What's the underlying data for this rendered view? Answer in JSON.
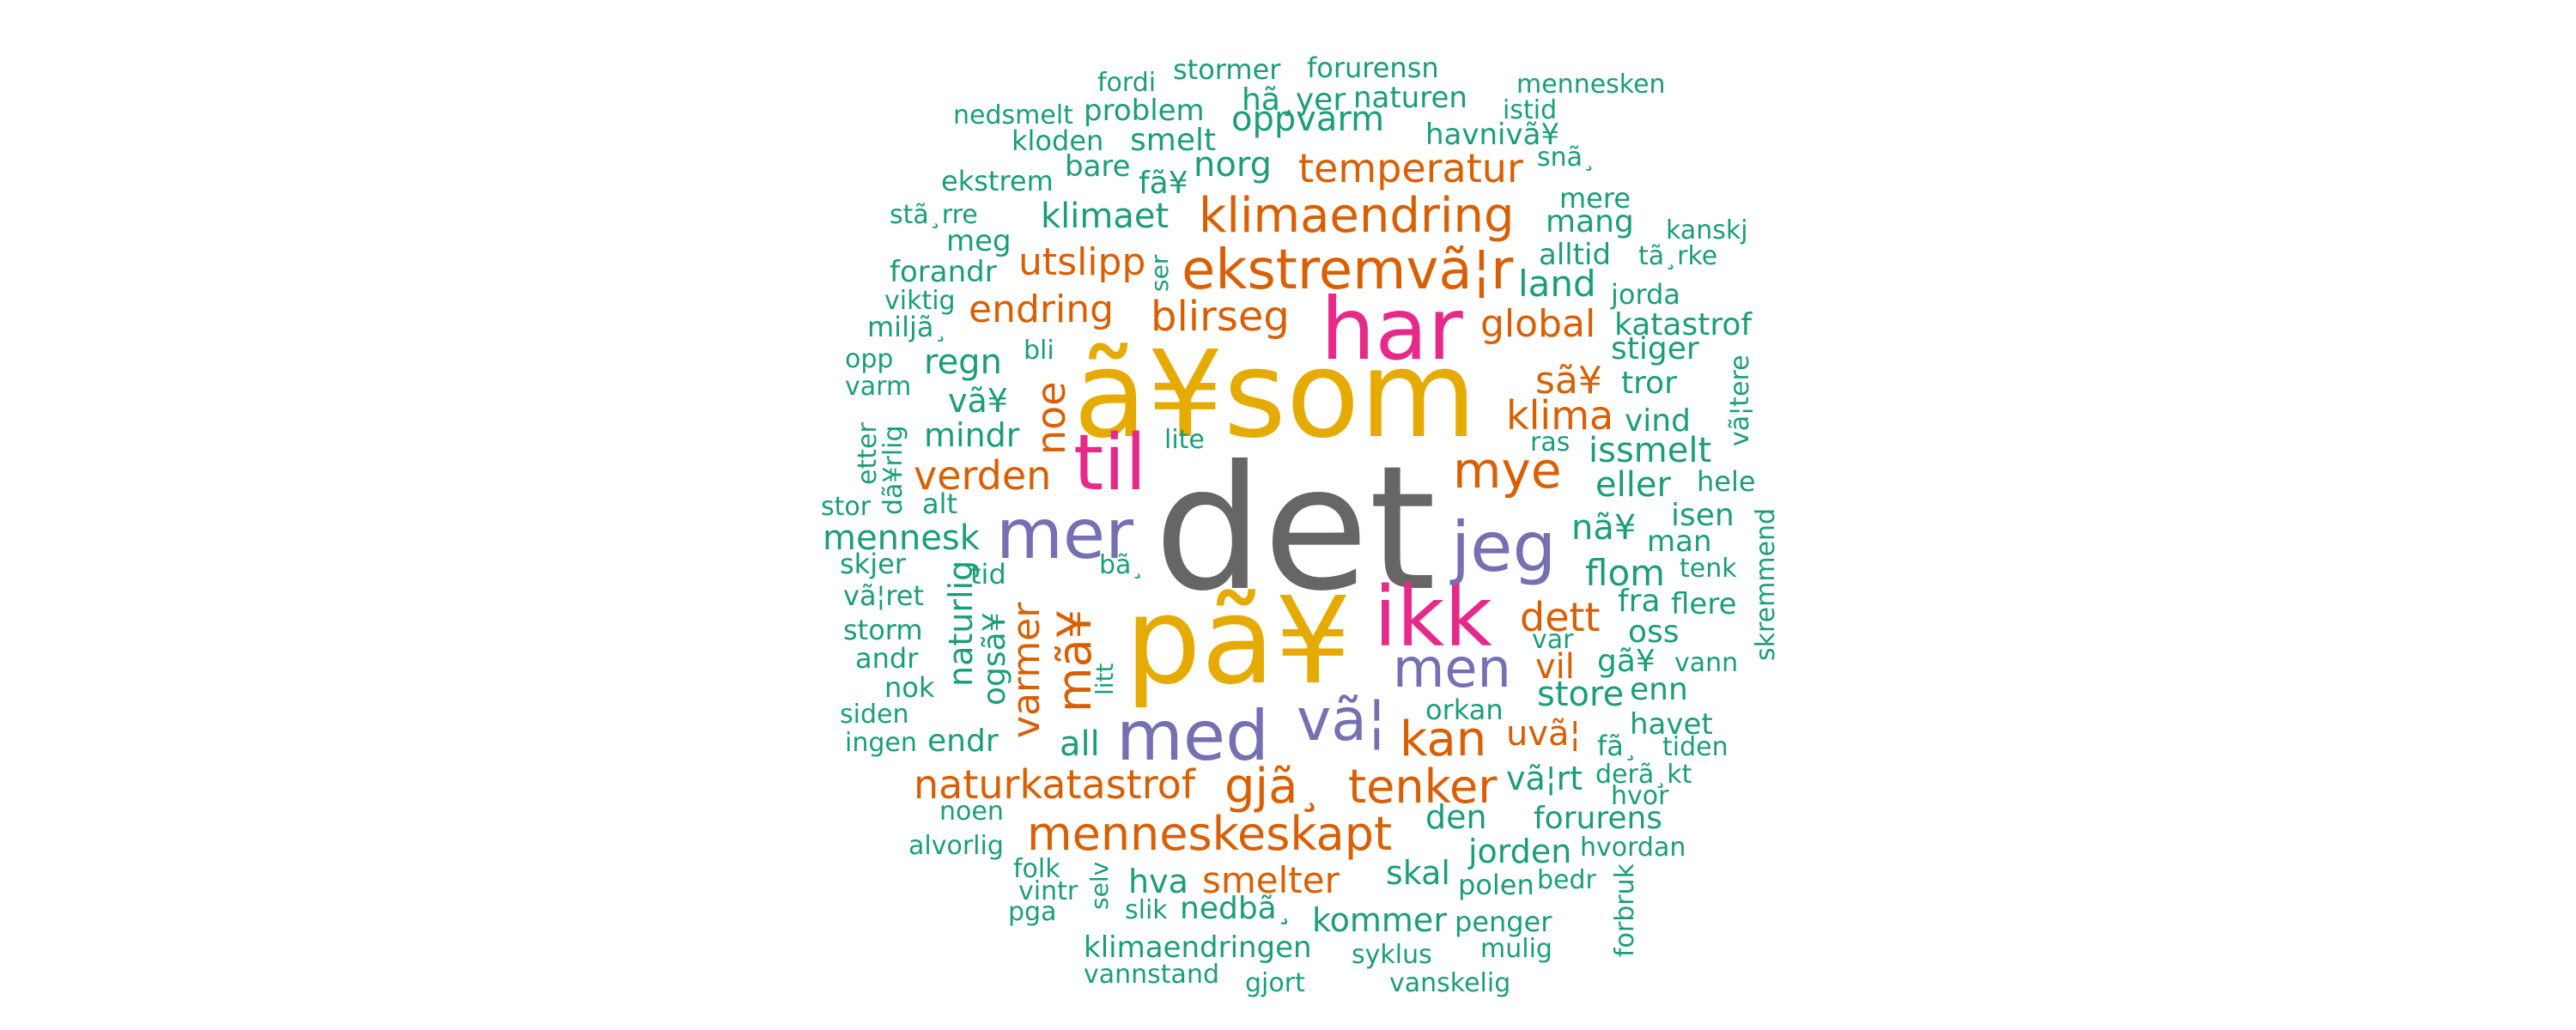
{
  "chart_data": {
    "type": "wordcloud",
    "colors": {
      "gray": "#666666",
      "gold": "#e6ab02",
      "magenta": "#e7298a",
      "purple": "#7570b3",
      "orange": "#d95f02",
      "teal": "#1b9e77"
    },
    "words": [
      {
        "text": "det",
        "color": "gray"
      },
      {
        "text": "ã¥som",
        "color": "gold"
      },
      {
        "text": "pã¥",
        "color": "gold"
      },
      {
        "text": "har",
        "color": "magenta"
      },
      {
        "text": "ikk",
        "color": "magenta"
      },
      {
        "text": "til",
        "color": "magenta"
      },
      {
        "text": "mer",
        "color": "purple"
      },
      {
        "text": "med",
        "color": "purple"
      },
      {
        "text": "jeg",
        "color": "purple"
      },
      {
        "text": "men",
        "color": "purple"
      },
      {
        "text": "vã¦",
        "color": "purple"
      },
      {
        "text": "ekstremvã¦r",
        "color": "orange"
      },
      {
        "text": "klimaendring",
        "color": "orange"
      },
      {
        "text": "menneskeskapt",
        "color": "orange"
      },
      {
        "text": "gjã¸",
        "color": "orange"
      },
      {
        "text": "tenker",
        "color": "orange"
      },
      {
        "text": "kan",
        "color": "orange"
      },
      {
        "text": "mye",
        "color": "orange"
      },
      {
        "text": "naturkatastrof",
        "color": "orange"
      },
      {
        "text": "verden",
        "color": "orange"
      },
      {
        "text": "blirseg",
        "color": "orange"
      },
      {
        "text": "temperatur",
        "color": "orange"
      },
      {
        "text": "utslipp",
        "color": "orange"
      },
      {
        "text": "endring",
        "color": "orange"
      },
      {
        "text": "klima",
        "color": "orange"
      },
      {
        "text": "global",
        "color": "orange"
      },
      {
        "text": "sã¥",
        "color": "orange"
      },
      {
        "text": "smelter",
        "color": "orange"
      },
      {
        "text": "dett",
        "color": "orange"
      },
      {
        "text": "mã¥",
        "color": "orange"
      },
      {
        "text": "varmer",
        "color": "orange"
      },
      {
        "text": "noe",
        "color": "orange"
      },
      {
        "text": "uvã¦",
        "color": "orange"
      },
      {
        "text": "vil",
        "color": "orange"
      },
      {
        "text": "oppvarm",
        "color": "teal"
      },
      {
        "text": "norg",
        "color": "teal"
      },
      {
        "text": "klimaet",
        "color": "teal"
      },
      {
        "text": "land",
        "color": "teal"
      },
      {
        "text": "flom",
        "color": "teal"
      },
      {
        "text": "mennesk",
        "color": "teal"
      },
      {
        "text": "regn",
        "color": "teal"
      },
      {
        "text": "vã¥",
        "color": "teal"
      },
      {
        "text": "mindr",
        "color": "teal"
      },
      {
        "text": "naturlig",
        "color": "teal"
      },
      {
        "text": "ogsã¥",
        "color": "teal"
      },
      {
        "text": "issmelt",
        "color": "teal"
      },
      {
        "text": "eller",
        "color": "teal"
      },
      {
        "text": "nã¥",
        "color": "teal"
      },
      {
        "text": "store",
        "color": "teal"
      },
      {
        "text": "all",
        "color": "teal"
      },
      {
        "text": "endr",
        "color": "teal"
      },
      {
        "text": "den",
        "color": "teal"
      },
      {
        "text": "forurens",
        "color": "teal"
      },
      {
        "text": "jorden",
        "color": "teal"
      },
      {
        "text": "skal",
        "color": "teal"
      },
      {
        "text": "hva",
        "color": "teal"
      },
      {
        "text": "nedbã¸",
        "color": "teal"
      },
      {
        "text": "kommer",
        "color": "teal"
      },
      {
        "text": "klimaendringen",
        "color": "teal"
      },
      {
        "text": "smelt",
        "color": "teal"
      },
      {
        "text": "problem",
        "color": "teal"
      },
      {
        "text": "havnivã¥",
        "color": "teal"
      },
      {
        "text": "naturen",
        "color": "teal"
      },
      {
        "text": "hã¸yer",
        "color": "teal"
      },
      {
        "text": "stormer",
        "color": "teal"
      },
      {
        "text": "forurensn",
        "color": "teal"
      },
      {
        "text": "fordi",
        "color": "teal"
      },
      {
        "text": "nedsmelt",
        "color": "teal"
      },
      {
        "text": "kloden",
        "color": "teal"
      },
      {
        "text": "ekstrem",
        "color": "teal"
      },
      {
        "text": "bare",
        "color": "teal"
      },
      {
        "text": "fã¥",
        "color": "teal"
      },
      {
        "text": "mennesken",
        "color": "teal"
      },
      {
        "text": "istid",
        "color": "teal"
      },
      {
        "text": "snã¸",
        "color": "teal"
      },
      {
        "text": "mere",
        "color": "teal"
      },
      {
        "text": "mang",
        "color": "teal"
      },
      {
        "text": "kanskj",
        "color": "teal"
      },
      {
        "text": "alltid",
        "color": "teal"
      },
      {
        "text": "tã¸rke",
        "color": "teal"
      },
      {
        "text": "jorda",
        "color": "teal"
      },
      {
        "text": "katastrof",
        "color": "teal"
      },
      {
        "text": "stiger",
        "color": "teal"
      },
      {
        "text": "tror",
        "color": "teal"
      },
      {
        "text": "vind",
        "color": "teal"
      },
      {
        "text": "vã¦tere",
        "color": "teal"
      },
      {
        "text": "ras",
        "color": "teal"
      },
      {
        "text": "hele",
        "color": "teal"
      },
      {
        "text": "isen",
        "color": "teal"
      },
      {
        "text": "man",
        "color": "teal"
      },
      {
        "text": "tenk",
        "color": "teal"
      },
      {
        "text": "skremmend",
        "color": "teal"
      },
      {
        "text": "fra",
        "color": "teal"
      },
      {
        "text": "flere",
        "color": "teal"
      },
      {
        "text": "oss",
        "color": "teal"
      },
      {
        "text": "var",
        "color": "teal"
      },
      {
        "text": "gã¥",
        "color": "teal"
      },
      {
        "text": "vann",
        "color": "teal"
      },
      {
        "text": "enn",
        "color": "teal"
      },
      {
        "text": "havet",
        "color": "teal"
      },
      {
        "text": "fã¸",
        "color": "teal"
      },
      {
        "text": "tiden",
        "color": "teal"
      },
      {
        "text": "derã¸kt",
        "color": "teal"
      },
      {
        "text": "hvor",
        "color": "teal"
      },
      {
        "text": "hvordan",
        "color": "teal"
      },
      {
        "text": "vã¦rt",
        "color": "teal"
      },
      {
        "text": "orkan",
        "color": "teal"
      },
      {
        "text": "bedr",
        "color": "teal"
      },
      {
        "text": "polen",
        "color": "teal"
      },
      {
        "text": "forbruk",
        "color": "teal"
      },
      {
        "text": "penger",
        "color": "teal"
      },
      {
        "text": "mulig",
        "color": "teal"
      },
      {
        "text": "syklus",
        "color": "teal"
      },
      {
        "text": "vanskelig",
        "color": "teal"
      },
      {
        "text": "gjort",
        "color": "teal"
      },
      {
        "text": "vannstand",
        "color": "teal"
      },
      {
        "text": "slik",
        "color": "teal"
      },
      {
        "text": "selv",
        "color": "teal"
      },
      {
        "text": "folk",
        "color": "teal"
      },
      {
        "text": "vintr",
        "color": "teal"
      },
      {
        "text": "pga",
        "color": "teal"
      },
      {
        "text": "alvorlig",
        "color": "teal"
      },
      {
        "text": "noen",
        "color": "teal"
      },
      {
        "text": "ingen",
        "color": "teal"
      },
      {
        "text": "siden",
        "color": "teal"
      },
      {
        "text": "nok",
        "color": "teal"
      },
      {
        "text": "andr",
        "color": "teal"
      },
      {
        "text": "storm",
        "color": "teal"
      },
      {
        "text": "vã¦ret",
        "color": "teal"
      },
      {
        "text": "skjer",
        "color": "teal"
      },
      {
        "text": "tid",
        "color": "teal"
      },
      {
        "text": "alt",
        "color": "teal"
      },
      {
        "text": "stor",
        "color": "teal"
      },
      {
        "text": "etter",
        "color": "teal"
      },
      {
        "text": "dã¥rlig",
        "color": "teal"
      },
      {
        "text": "varm",
        "color": "teal"
      },
      {
        "text": "opp",
        "color": "teal"
      },
      {
        "text": "miljã¸",
        "color": "teal"
      },
      {
        "text": "viktig",
        "color": "teal"
      },
      {
        "text": "forandr",
        "color": "teal"
      },
      {
        "text": "meg",
        "color": "teal"
      },
      {
        "text": "stã¸rre",
        "color": "teal"
      },
      {
        "text": "bli",
        "color": "teal"
      },
      {
        "text": "ser",
        "color": "teal"
      },
      {
        "text": "lite",
        "color": "teal"
      },
      {
        "text": "bã¸",
        "color": "teal"
      },
      {
        "text": "litt",
        "color": "teal"
      }
    ]
  }
}
